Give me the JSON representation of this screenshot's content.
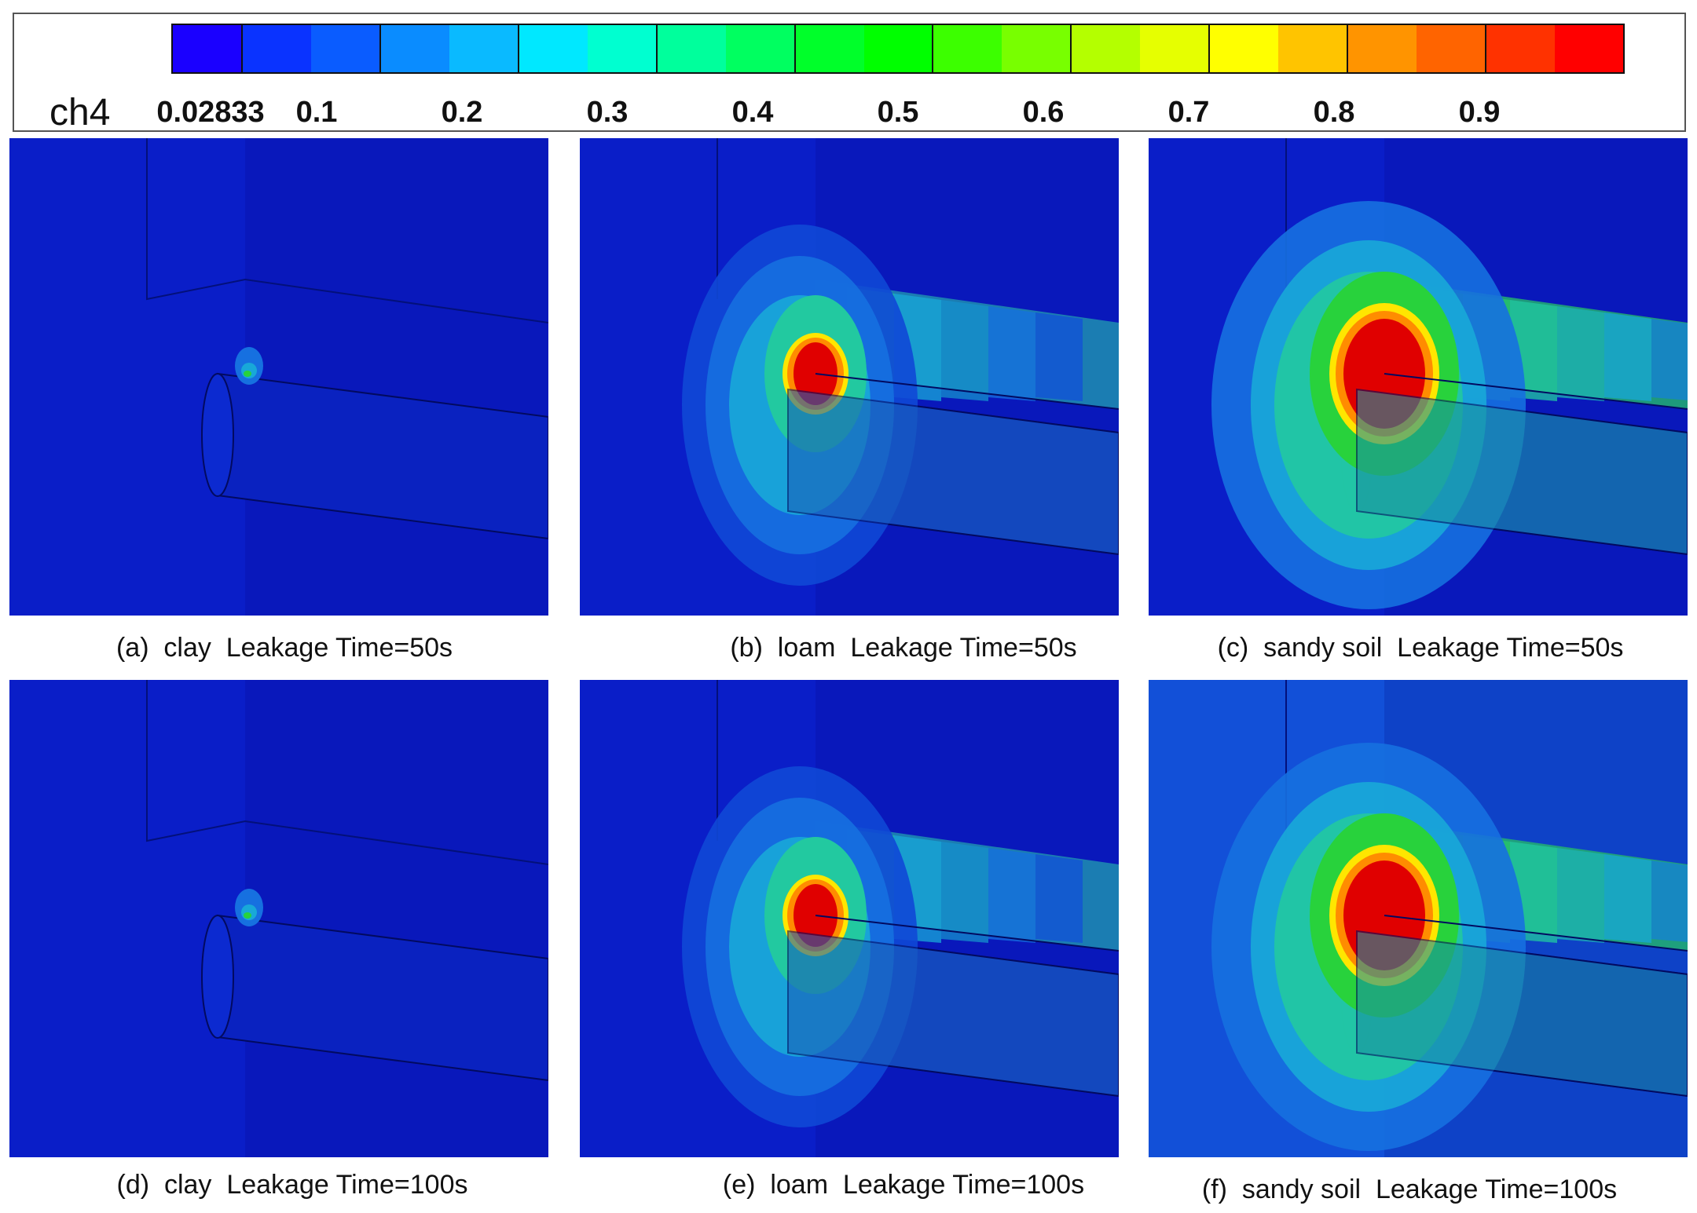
{
  "legend": {
    "variable": "ch4",
    "ticks": [
      "0.02833",
      "0.1",
      "0.2",
      "0.3",
      "0.4",
      "0.5",
      "0.6",
      "0.7",
      "0.8",
      "0.9"
    ],
    "tick_values": [
      0.02833,
      0.1,
      0.2,
      0.3,
      0.4,
      0.5,
      0.6,
      0.7,
      0.8,
      0.9
    ],
    "range": [
      0,
      1
    ],
    "band_colors": [
      "#1a00ff",
      "#0a33ff",
      "#0a5cff",
      "#0a8cff",
      "#0abaff",
      "#00e8ff",
      "#00ffd0",
      "#00ff9c",
      "#00ff60",
      "#00ff2a",
      "#00ff00",
      "#3cff00",
      "#78ff00",
      "#b4ff00",
      "#e6ff00",
      "#ffff00",
      "#ffc400",
      "#ff9400",
      "#ff6400",
      "#ff3200",
      "#ff0000"
    ]
  },
  "captions": {
    "a": "(a)  clay  Leakage Time=50s",
    "b": "(b)  loam  Leakage Time=50s",
    "c": "(c)  sandy soil  Leakage Time=50s",
    "d": "(d)  clay  Leakage Time=100s",
    "e": "(e)  loam  Leakage Time=100s",
    "f": "(f)  sandy soil  Leakage Time=100s"
  },
  "panel_colors": {
    "background": "#0a1ec8",
    "red": "#e00000",
    "orange": "#ff8c00",
    "yellow": "#ffe600",
    "green": "#28d23c",
    "teal": "#22c9a0",
    "cyan": "#18a8d8",
    "lightblue": "#1670e0",
    "midblue": "#0f48d6"
  }
}
